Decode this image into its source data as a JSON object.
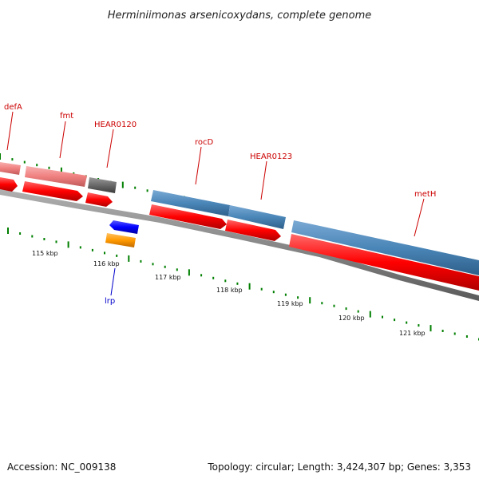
{
  "title": "Herminiimonas arsenicoxydans, complete genome",
  "footer": {
    "accession": "Accession: NC_009138",
    "summary": "Topology: circular; Length: 3,424,307 bp; Genes: 3,353"
  },
  "colors": {
    "forward_cds": "#4a86b8",
    "reverse_cds": "#ff0000",
    "rna": "#f08080",
    "other": "#707070",
    "regulator": "#0000ff",
    "orange_feature": "#ff9a00",
    "gc_skew": "#007f00",
    "label_red": "#cc0000",
    "label_blue": "#0000cc"
  },
  "gene_labels": [
    {
      "name": "defA",
      "color": "#cc0000"
    },
    {
      "name": "fmt",
      "color": "#cc0000"
    },
    {
      "name": "HEAR0120",
      "color": "#cc0000"
    },
    {
      "name": "rocD",
      "color": "#cc0000"
    },
    {
      "name": "HEAR0123",
      "color": "#cc0000"
    },
    {
      "name": "metH",
      "color": "#cc0000"
    },
    {
      "name": "lrp",
      "color": "#0000cc"
    }
  ],
  "tick_labels": [
    "115 kbp",
    "116 kbp",
    "117 kbp",
    "118 kbp",
    "119 kbp",
    "120 kbp",
    "121 kbp"
  ]
}
